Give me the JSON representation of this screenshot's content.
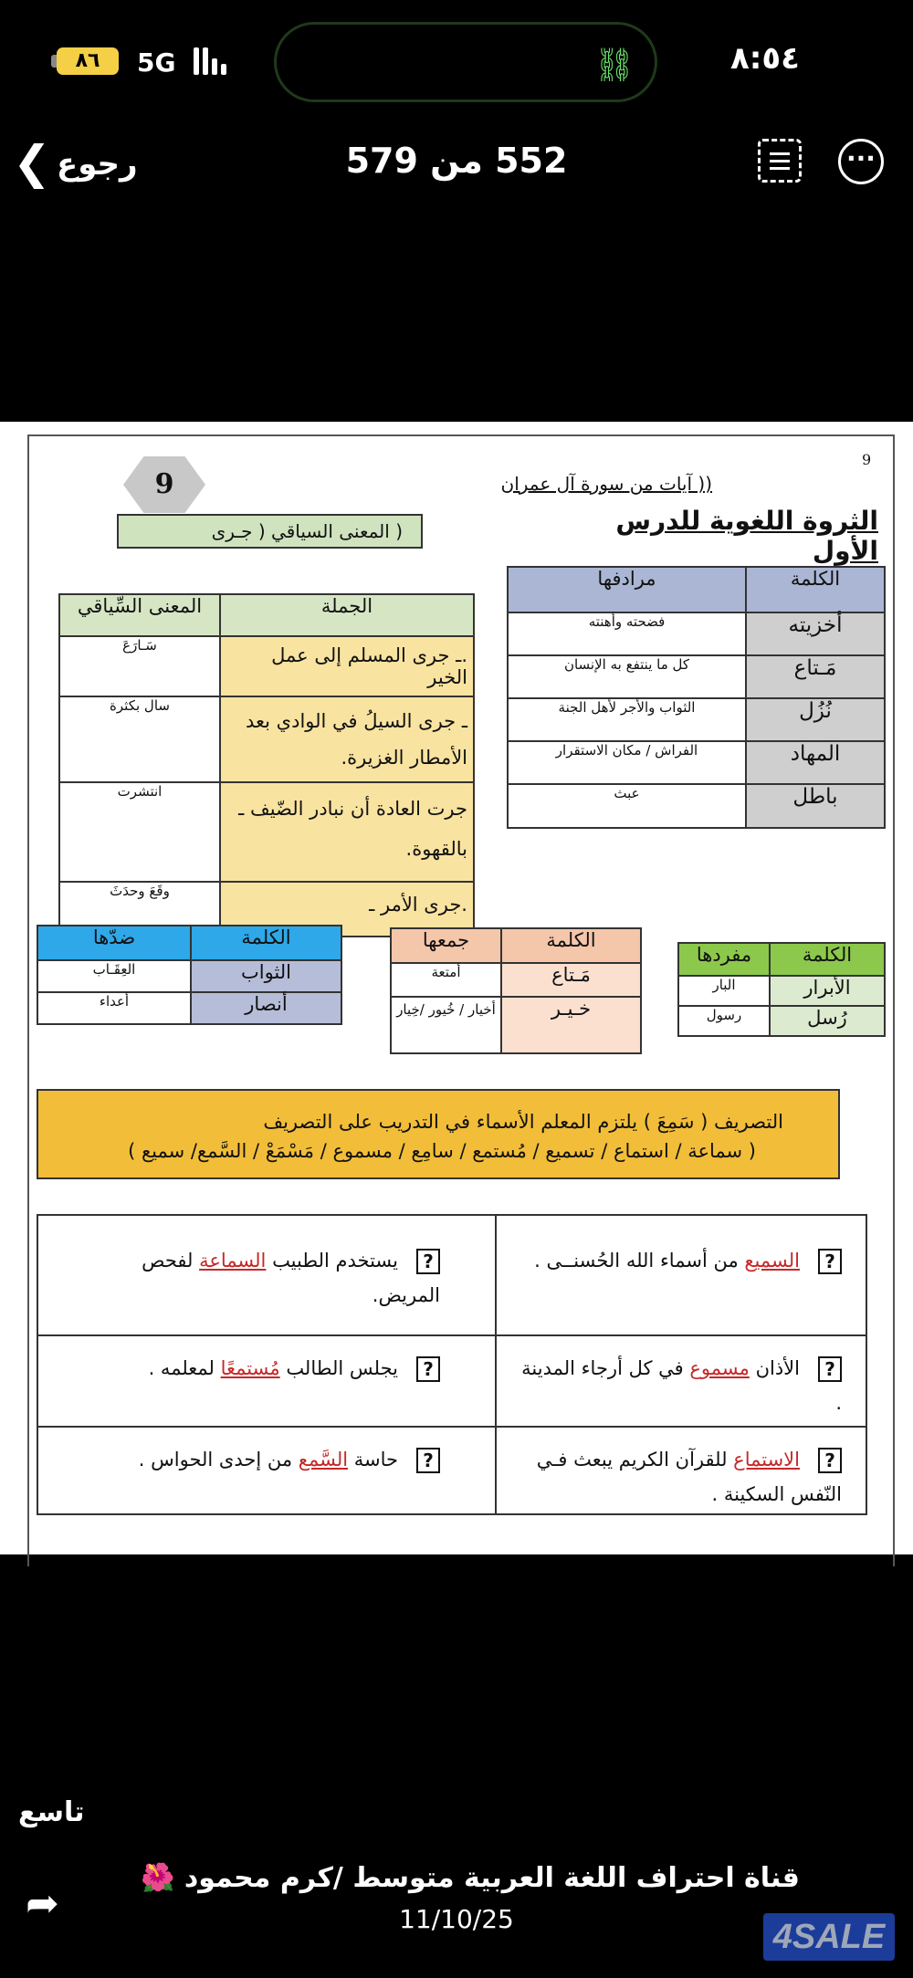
{
  "status_bar": {
    "time": "٨:٥٤",
    "battery": "٨٦",
    "network": "5G",
    "colors": {
      "battery": "#f5cf45",
      "link": "#6be16b"
    }
  },
  "nav": {
    "back_label": "رجوع",
    "title": "552 من 579",
    "icons": [
      "chevron-left-icon",
      "scan-text-icon",
      "more-icon"
    ]
  },
  "doc": {
    "page_number": "9",
    "badge_number": "9",
    "subtitle": "(( آيات من سورة آل عمران",
    "title": "الثروة اللغوية للدرس الأول",
    "context_box": "(      المعنى السياقي ( جـرى",
    "synonyms": {
      "headers": [
        "الكلمة",
        "مرادفها"
      ],
      "rows": [
        [
          "أخزيته",
          "فضحته وأهنته"
        ],
        [
          "مَـتاع",
          "كل ما ينتفع به الإنسان"
        ],
        [
          "نُزُل",
          "الثواب والأجر لأهل الجنة"
        ],
        [
          "المهاد",
          "الفراش / مكان الاستقرار"
        ],
        [
          "باطل",
          "عبث"
        ]
      ]
    },
    "context": {
      "headers": [
        "الجملة",
        "المعنى السِّياقي"
      ],
      "rows": [
        [
          ".ـ جرى المسلم إلى عمل الخير",
          "سَـارَعَ"
        ],
        [
          "ـ جرى السيلُ في الوادي بعد الأمطار الغزيرة.",
          "سال بكثرة"
        ],
        [
          "جرت العادة أن نبادر الضّيف ـ بالقهوة.",
          "انتشرت"
        ],
        [
          ".جرى الأمر ـ",
          "وقَعَ وحدَثَ"
        ]
      ]
    },
    "antonyms": {
      "headers": [
        "الكلمة",
        "ضدّها"
      ],
      "rows": [
        [
          "الثواب",
          "العِقَـاب"
        ],
        [
          "أنصار",
          "أعداء"
        ]
      ]
    },
    "plurals": {
      "headers": [
        "الكلمة",
        "جمعها"
      ],
      "rows": [
        [
          "مَـتاع",
          "أمتعة"
        ],
        [
          "خـيـر",
          "أخيار / خُيور /خِيار"
        ]
      ]
    },
    "singulars": {
      "headers": [
        "الكلمة",
        "مفردها"
      ],
      "rows": [
        [
          "الأبرار",
          "البار"
        ],
        [
          "رُسل",
          "رسول"
        ]
      ]
    },
    "banner": {
      "line1": "التصريف ( سَمِعَ ) يلتزم المعلم الأسماء في التدريب على التصريف",
      "line2": "( سماعة / استماع / تسميع / مُستمع / سامِع / مسموع / مَسْمَعْ / السَّمع/ سميع )"
    },
    "exercises": [
      {
        "pre": "",
        "word": "السميع",
        "post": " من أسماء الله الحُسنــى ."
      },
      {
        "pre": "يستخدم الطبيب ",
        "word": "السماعة",
        "post": " لفحص المريض."
      },
      {
        "pre": "الأذان ",
        "word": "مسموع",
        "post": " في كل أرجاء المدينة ."
      },
      {
        "pre": "يجلس الطالب ",
        "word": "مُستمعًا",
        "post": " لمعلمه ."
      },
      {
        "pre": "",
        "word": "الاستماع",
        "post": " للقرآن الكريم يبعث فـي النّفس السكينة  ."
      },
      {
        "pre": "حاسة ",
        "word": "السَّمع",
        "post": " من إحدى الحواس ."
      }
    ],
    "question_mark": "?",
    "colors": {
      "badge": "#c8c8c8",
      "context_box": "#cfe3bf",
      "syn_header": "#aab6d4",
      "syn_word": "#cfcfcf",
      "ctx_header": "#d6e6c4",
      "ctx_sentence": "#f9e3a0",
      "ant_header": "#2ea8e8",
      "ant_word": "#b5bdd8",
      "pl_header": "#f4c6aa",
      "pl_word": "#fbe0d0",
      "sg_header": "#8cc84b",
      "sg_word": "#dcebd0",
      "banner": "#f2bd38",
      "highlight": "#c62828"
    }
  },
  "footer": {
    "label": "تاسع",
    "caption": "قناة احتراف اللغة العربية متوسط /كرم محمود 🌺",
    "date": "11/10/25",
    "logo": "4SALE"
  }
}
